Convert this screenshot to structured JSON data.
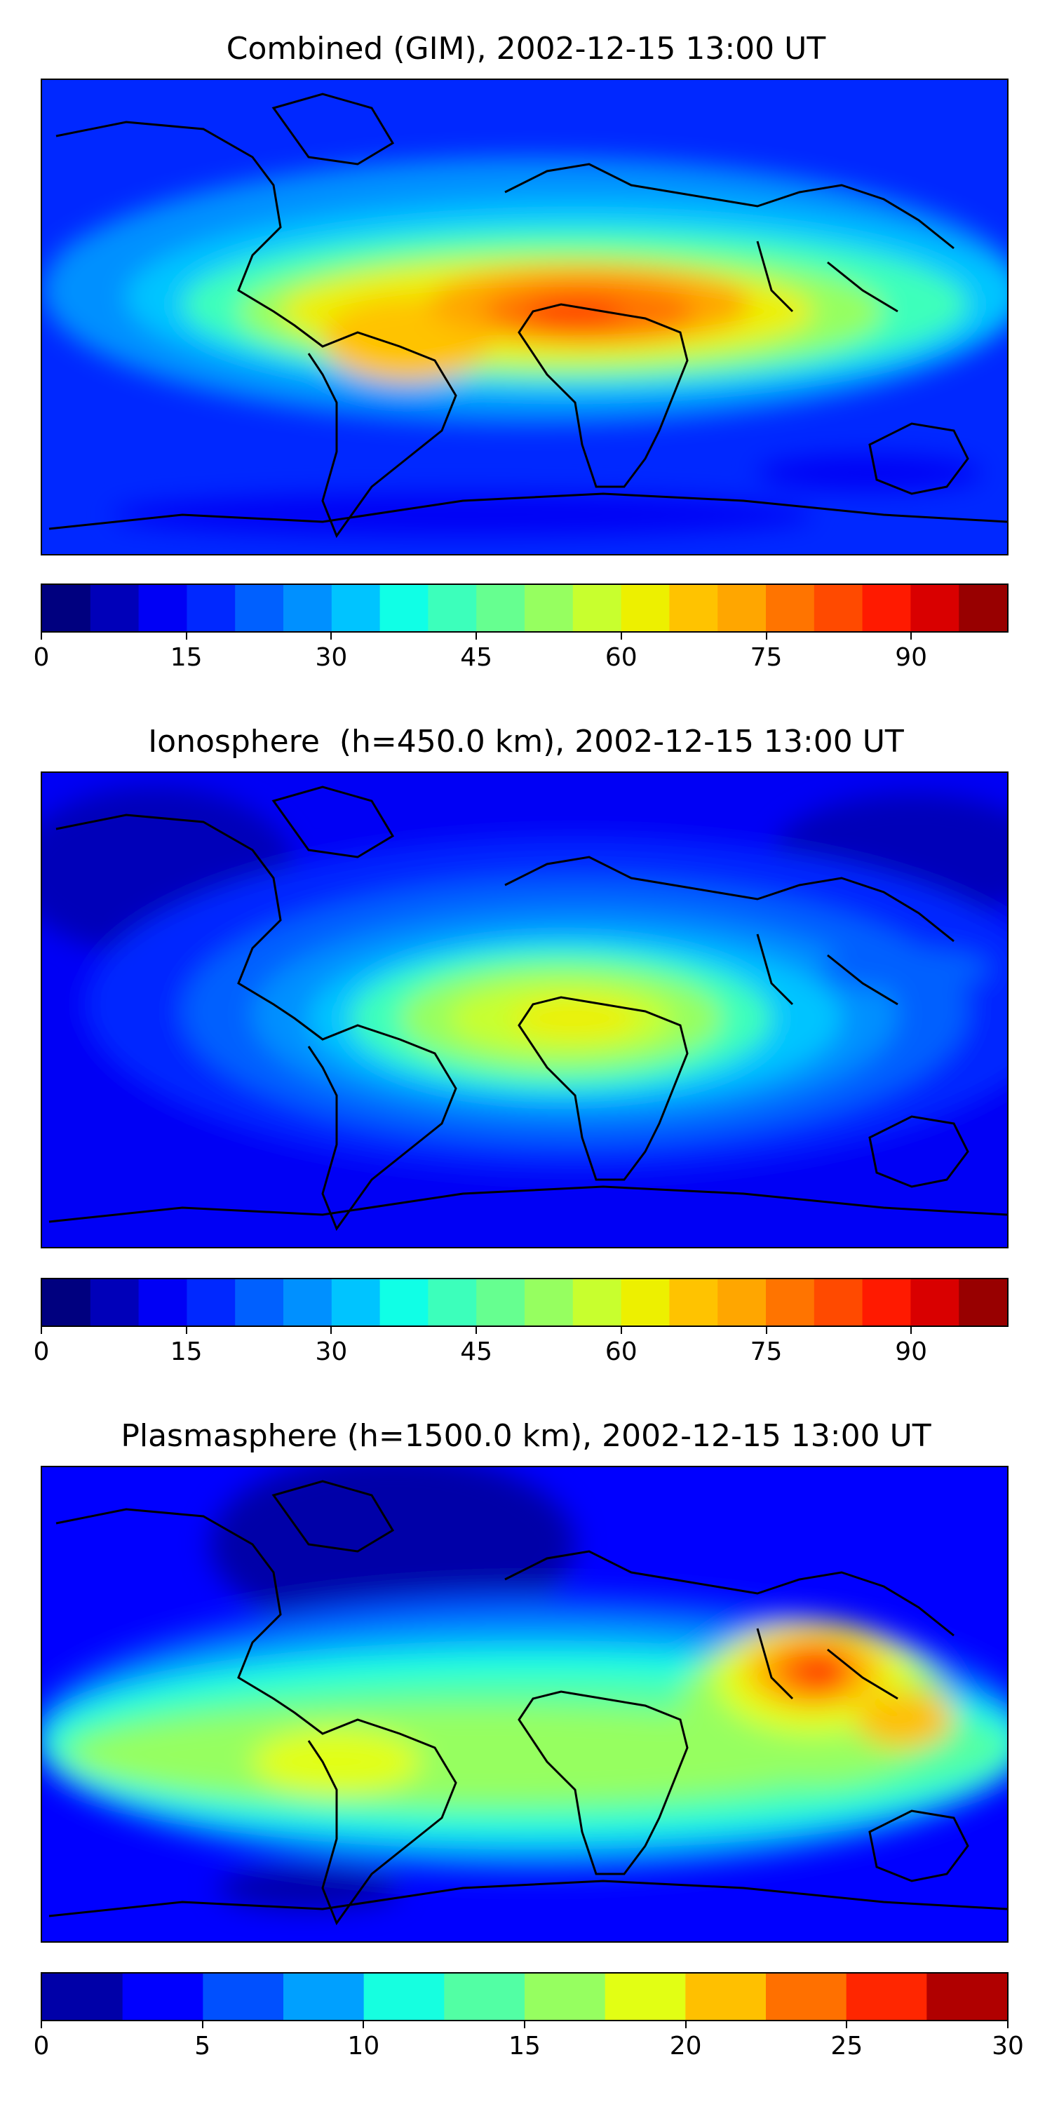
{
  "panels": [
    {
      "title": "Combined (GIM), 2002-12-15 13:00 UT",
      "colorbar": {
        "min": 0,
        "max": 100,
        "step": 5,
        "ticks": [
          "0",
          "15",
          "30",
          "45",
          "60",
          "75",
          "90"
        ],
        "tick_values": [
          0,
          15,
          30,
          45,
          60,
          75,
          90
        ],
        "colors": [
          "#00007f",
          "#0000b9",
          "#0000f5",
          "#0028ff",
          "#0060ff",
          "#0090ff",
          "#00c4ff",
          "#10ffe6",
          "#3cffbb",
          "#66ff90",
          "#96ff60",
          "#c8ff2e",
          "#edf000",
          "#ffc300",
          "#ffa600",
          "#ff7400",
          "#ff4a00",
          "#ff1a00",
          "#d90000",
          "#980000"
        ]
      }
    },
    {
      "title": "Ionosphere  (h=450.0 km), 2002-12-15 13:00 UT",
      "colorbar": {
        "min": 0,
        "max": 100,
        "step": 5,
        "ticks": [
          "0",
          "15",
          "30",
          "45",
          "60",
          "75",
          "90"
        ],
        "tick_values": [
          0,
          15,
          30,
          45,
          60,
          75,
          90
        ],
        "colors": [
          "#00007f",
          "#0000b9",
          "#0000f5",
          "#0028ff",
          "#0060ff",
          "#0090ff",
          "#00c4ff",
          "#10ffe6",
          "#3cffbb",
          "#66ff90",
          "#96ff60",
          "#c8ff2e",
          "#edf000",
          "#ffc300",
          "#ffa600",
          "#ff7400",
          "#ff4a00",
          "#ff1a00",
          "#d90000",
          "#980000"
        ]
      }
    },
    {
      "title": "Plasmasphere (h=1500.0 km), 2002-12-15 13:00 UT",
      "colorbar": {
        "min": 0,
        "max": 30,
        "step": 2.5,
        "ticks": [
          "0",
          "5",
          "10",
          "15",
          "20",
          "25",
          "30"
        ],
        "tick_values": [
          0,
          5,
          10,
          15,
          20,
          25,
          30
        ],
        "colors": [
          "#0000a8",
          "#0000ff",
          "#0050ff",
          "#00a0ff",
          "#16ffe0",
          "#52ffa4",
          "#96ff60",
          "#e2ff14",
          "#ffc000",
          "#ff7000",
          "#ff2600",
          "#b00000"
        ]
      }
    }
  ]
}
